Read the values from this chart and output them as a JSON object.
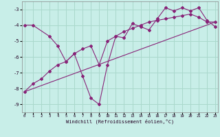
{
  "xlabel": "Windchill (Refroidissement éolien,°C)",
  "bg_color": "#c8eee8",
  "line_color": "#882277",
  "grid_color": "#aad8cc",
  "x_min": 0,
  "x_max": 23,
  "y_min": -9.5,
  "y_max": -2.5,
  "series1_x": [
    0,
    1,
    3,
    4,
    5,
    6,
    7,
    8,
    9,
    10,
    11,
    12,
    13,
    14,
    15,
    16,
    17,
    18,
    19,
    20,
    21,
    22,
    23
  ],
  "series1_y": [
    -4.0,
    -4.0,
    -4.7,
    -5.3,
    -6.3,
    -5.8,
    -7.2,
    -8.6,
    -9.0,
    -6.5,
    -4.7,
    -4.8,
    -3.9,
    -4.1,
    -4.3,
    -3.6,
    -2.9,
    -3.1,
    -2.9,
    -3.1,
    -2.9,
    -3.7,
    -4.1
  ],
  "series2_x": [
    0,
    1,
    2,
    3,
    4,
    5,
    6,
    7,
    8,
    9,
    10,
    11,
    12,
    13,
    14,
    15,
    16,
    17,
    18,
    19,
    20,
    21,
    22,
    23
  ],
  "series2_y": [
    -8.2,
    -7.7,
    -7.4,
    -6.9,
    -6.5,
    -6.3,
    -5.8,
    -5.5,
    -5.3,
    -6.5,
    -5.0,
    -4.7,
    -4.4,
    -4.2,
    -4.0,
    -3.8,
    -3.7,
    -3.6,
    -3.5,
    -3.4,
    -3.3,
    -3.5,
    -3.8,
    -3.8
  ],
  "yticks": [
    -3,
    -4,
    -5,
    -6,
    -7,
    -8,
    -9
  ],
  "xticks": [
    0,
    1,
    2,
    3,
    4,
    5,
    6,
    7,
    8,
    9,
    10,
    11,
    12,
    13,
    14,
    15,
    16,
    17,
    18,
    19,
    20,
    21,
    22,
    23
  ]
}
